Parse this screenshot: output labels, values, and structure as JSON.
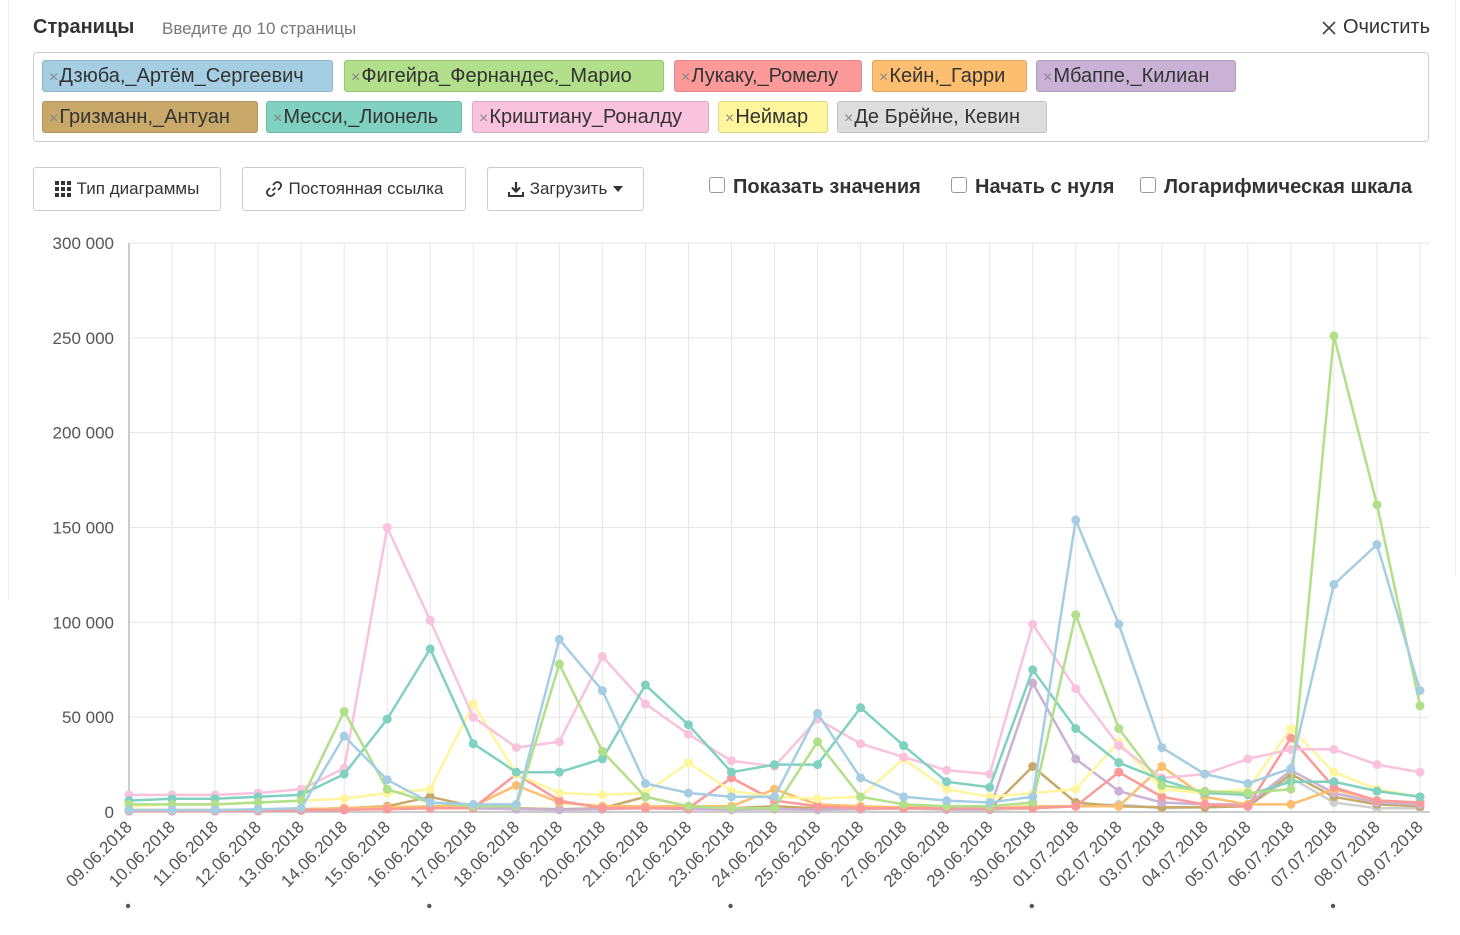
{
  "header": {
    "pages_label": "Страницы",
    "pages_hint": "Введите до 10 страницы",
    "clear_label": "Очистить"
  },
  "tags": [
    {
      "label": "Дзюба,_Артём_Сергеевич",
      "color": "#a6cee3"
    },
    {
      "label": "Фигейра_Фернандес,_Марио",
      "color": "#b2df8a"
    },
    {
      "label": "Лукаку,_Ромелу",
      "color": "#fb9a99"
    },
    {
      "label": "Кейн,_Гарри",
      "color": "#fdbf6f"
    },
    {
      "label": "Мбаппе,_Килиан",
      "color": "#cab2d6"
    },
    {
      "label": "Гризманн,_Антуан",
      "color": "#c8a96a"
    },
    {
      "label": "Месси,_Лионель",
      "color": "#80d1c0"
    },
    {
      "label": "Криштиану_Роналду",
      "color": "#f9c3dd"
    },
    {
      "label": "Неймар",
      "color": "#fff59d"
    },
    {
      "label": "Де Брёйне, Кевин",
      "color": "#dddddd"
    }
  ],
  "toolbar": {
    "chart_type_label": "Тип диаграммы",
    "permalink_label": "Постоянная ссылка",
    "download_label": "Загрузить",
    "show_values_label": "Показать значения",
    "start_zero_label": "Начать с нуля",
    "log_scale_label": "Логарифмическая шкала"
  },
  "chart_data": {
    "type": "line",
    "ylim": [
      0,
      300000
    ],
    "yticks": [
      0,
      50000,
      100000,
      150000,
      200000,
      250000,
      300000
    ],
    "ytick_labels": [
      "0",
      "50 000",
      "100 000",
      "150 000",
      "200 000",
      "250 000",
      "300 000"
    ],
    "grid": true,
    "categories": [
      "09.06.2018",
      "10.06.2018",
      "11.06.2018",
      "12.06.2018",
      "13.06.2018",
      "14.06.2018",
      "15.06.2018",
      "16.06.2018",
      "17.06.2018",
      "18.06.2018",
      "19.06.2018",
      "20.06.2018",
      "21.06.2018",
      "22.06.2018",
      "23.06.2018",
      "24.06.2018",
      "25.06.2018",
      "26.06.2018",
      "27.06.2018",
      "28.06.2018",
      "29.06.2018",
      "30.06.2018",
      "01.07.2018",
      "02.07.2018",
      "03.07.2018",
      "04.07.2018",
      "05.07.2018",
      "06.07.2018",
      "07.07.2018",
      "08.07.2018",
      "09.07.2018"
    ],
    "weekend_markers": [
      "11.06.2018",
      "18.06.2018",
      "25.06.2018",
      "02.07.2018",
      "09.07.2018"
    ],
    "series": [
      {
        "name": "Де Брёйне, Кевин",
        "color": "#d0d0d0",
        "values": [
          1000,
          1000,
          1000,
          1200,
          1300,
          1500,
          2000,
          3000,
          2000,
          1500,
          1200,
          1500,
          3000,
          2000,
          1500,
          1500,
          1200,
          1500,
          1800,
          1200,
          1000,
          2000,
          3000,
          4000,
          2000,
          2500,
          3000,
          18000,
          5000,
          2000,
          2000
        ]
      },
      {
        "name": "Гризманн,_Антуан",
        "color": "#c8a96a",
        "values": [
          1000,
          1000,
          1000,
          1200,
          1500,
          2000,
          3000,
          8000,
          3000,
          2000,
          1500,
          2000,
          8000,
          3000,
          2000,
          3000,
          2000,
          2000,
          2500,
          2000,
          1500,
          24000,
          5000,
          3000,
          2500,
          2500,
          3000,
          20000,
          8000,
          4000,
          3000
        ]
      },
      {
        "name": "Мбаппе,_Килиан",
        "color": "#cab2d6",
        "values": [
          500,
          500,
          500,
          500,
          800,
          1000,
          2000,
          3000,
          2000,
          1500,
          1200,
          1500,
          2000,
          1500,
          1200,
          1500,
          1200,
          1500,
          2000,
          1500,
          1500,
          68000,
          28000,
          11000,
          5000,
          4000,
          4000,
          22000,
          10000,
          5000,
          4000
        ]
      },
      {
        "name": "Кейн,_Гарри",
        "color": "#fdbf6f",
        "values": [
          1000,
          1000,
          1000,
          1200,
          1500,
          2000,
          2500,
          3000,
          3000,
          14000,
          5000,
          3000,
          3000,
          3000,
          3000,
          12000,
          4000,
          3000,
          2500,
          2500,
          2000,
          3000,
          3000,
          3000,
          24000,
          8000,
          4000,
          4000,
          12000,
          6000,
          5000
        ]
      },
      {
        "name": "Лукаку,_Ромелу",
        "color": "#fb9a99",
        "values": [
          500,
          500,
          500,
          800,
          1000,
          1200,
          1500,
          2000,
          2000,
          20000,
          6000,
          2000,
          2000,
          2000,
          18000,
          6000,
          3000,
          2000,
          2000,
          2000,
          2000,
          2000,
          3000,
          21000,
          8000,
          4000,
          3000,
          39000,
          13000,
          6000,
          5000
        ]
      },
      {
        "name": "Неймар",
        "color": "#fff59d",
        "values": [
          3000,
          4000,
          4000,
          5000,
          6000,
          7000,
          10000,
          12000,
          57000,
          20000,
          10000,
          9000,
          10000,
          26000,
          11000,
          8000,
          7000,
          8000,
          28000,
          12000,
          8000,
          10000,
          12000,
          37000,
          12000,
          10000,
          12000,
          44000,
          21000,
          12000,
          8000
        ]
      },
      {
        "name": "Криштиану_Роналду",
        "color": "#f9c3dd",
        "values": [
          9000,
          9000,
          9000,
          10000,
          12000,
          23000,
          150000,
          101000,
          50000,
          34000,
          37000,
          82000,
          57000,
          41000,
          27000,
          24000,
          49000,
          36000,
          29000,
          22000,
          20000,
          99000,
          65000,
          35000,
          18000,
          20000,
          28000,
          33000,
          33000,
          25000,
          21000
        ]
      },
      {
        "name": "Месси,_Лионель",
        "color": "#80d1c0",
        "values": [
          6000,
          7000,
          7000,
          8000,
          9000,
          20000,
          49000,
          86000,
          36000,
          21000,
          21000,
          28000,
          67000,
          46000,
          21000,
          25000,
          25000,
          55000,
          35000,
          16000,
          13000,
          75000,
          44000,
          26000,
          17000,
          10000,
          9000,
          16000,
          16000,
          11000,
          8000
        ]
      },
      {
        "name": "Фигейра_Фернандес,_Марио",
        "color": "#b2df8a",
        "values": [
          4000,
          4000,
          4000,
          5000,
          6000,
          53000,
          12000,
          5000,
          3000,
          3000,
          78000,
          32000,
          8000,
          3000,
          2000,
          2000,
          37000,
          8000,
          4000,
          3000,
          3000,
          5000,
          104000,
          44000,
          14000,
          11000,
          10000,
          12000,
          251000,
          162000,
          56000
        ]
      },
      {
        "name": "Дзюба,_Артём_Сергеевич",
        "color": "#a6cee3",
        "values": [
          1000,
          1000,
          1000,
          1500,
          2000,
          40000,
          17000,
          5000,
          4000,
          4000,
          91000,
          64000,
          15000,
          10000,
          8000,
          8000,
          52000,
          18000,
          8000,
          6000,
          5000,
          8000,
          154000,
          99000,
          34000,
          20000,
          15000,
          23000,
          120000,
          141000,
          64000
        ]
      }
    ]
  }
}
